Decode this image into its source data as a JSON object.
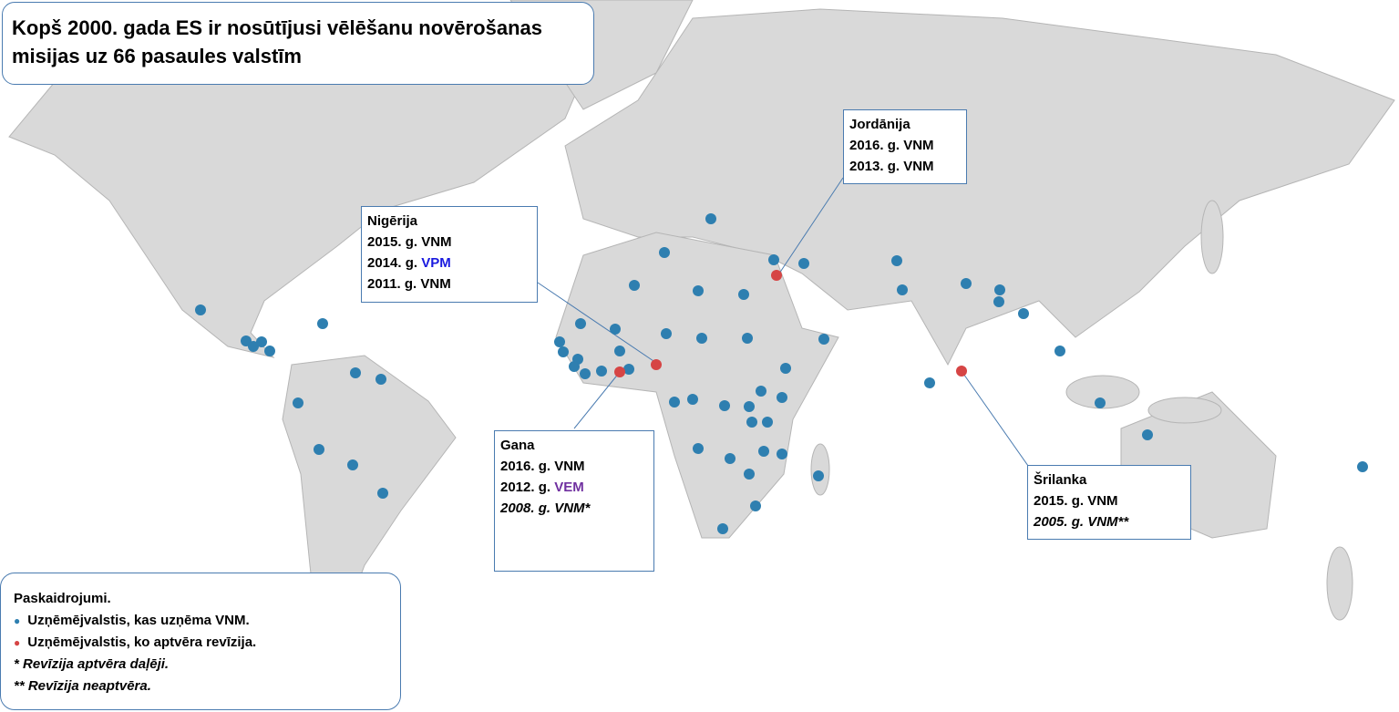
{
  "title": "Kopš 2000. gada ES ir nosūtījusi vēlēšanu novērošanas misijas uz 66 pasaules valstīm",
  "callouts": [
    {
      "country": "Jordānija",
      "lines": [
        {
          "text": "2016. g. VNM"
        },
        {
          "text": "2013. g. VNM"
        }
      ]
    },
    {
      "country": "Nigērija",
      "lines": [
        {
          "text": "2015. g. VNM"
        },
        {
          "text": "2014. g.",
          "tag": "VPM",
          "color": "#1a1adf"
        },
        {
          "text": "2011. g. VNM"
        }
      ]
    },
    {
      "country": "Gana",
      "lines": [
        {
          "text": "2016. g. VNM"
        },
        {
          "text": "2012. g.",
          "tag": "VEM",
          "color": "#7030a0"
        },
        {
          "text": "2008. g. VNM*",
          "italic": true
        }
      ]
    },
    {
      "country": "Šrilanka",
      "lines": [
        {
          "text": "2015. g. VNM"
        },
        {
          "text": "2005. g. VNM**",
          "italic": true
        }
      ]
    }
  ],
  "legend": {
    "title": "Paskaidrojumi.",
    "items": [
      {
        "label": "Uzņēmējvalstis, kas uzņēma VNM.",
        "color": "#2e7fb0"
      },
      {
        "label": "Uzņēmējvalstis, ko aptvēra revīzija.",
        "color": "#d64545"
      }
    ],
    "notes": [
      "* Revīzija aptvēra daļēji.",
      "** Revīzija neaptvēra."
    ]
  }
}
